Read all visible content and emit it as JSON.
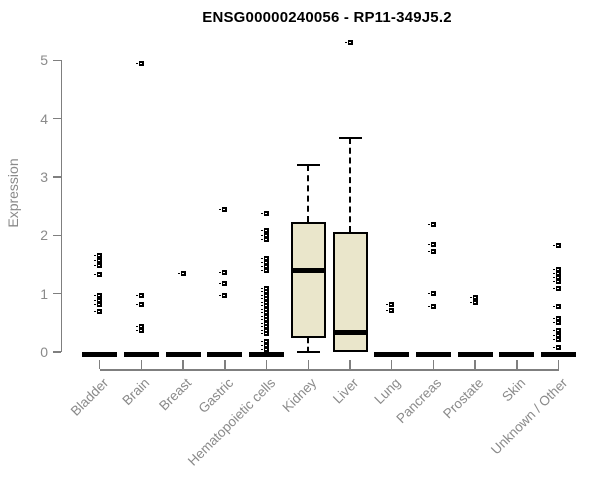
{
  "title": "ENSG00000240056 - RP11-349J5.2",
  "y_axis": {
    "label": "Expression",
    "ticks": [
      0,
      1,
      2,
      3,
      4,
      5
    ]
  },
  "colors": {
    "box_fill": "#EAE6CB",
    "box_stroke": "#000000",
    "axis": "#7f7f7f",
    "axis_text": "#8a8a8a",
    "title_text": "#000000"
  },
  "chart_data": {
    "type": "boxplot",
    "title": "ENSG00000240056 - RP11-349J5.2",
    "xlabel": "",
    "ylabel": "Expression",
    "ylim": [
      0,
      5
    ],
    "grid": false,
    "legend": false,
    "categories": [
      "Bladder",
      "Brain",
      "Breast",
      "Gastric",
      "Hematopoietic cells",
      "Kidney",
      "Liver",
      "Lung",
      "Pancreas",
      "Prostate",
      "Skin",
      "Unknown / Other"
    ],
    "boxes": [
      {
        "min": 0,
        "q1": 0,
        "med": 0,
        "q3": 0,
        "max": 0
      },
      {
        "min": 0,
        "q1": 0,
        "med": 0,
        "q3": 0,
        "max": 0
      },
      {
        "min": 0,
        "q1": 0,
        "med": 0,
        "q3": 0,
        "max": 0
      },
      {
        "min": 0,
        "q1": 0,
        "med": 0,
        "q3": 0,
        "max": 0
      },
      {
        "min": 0,
        "q1": 0,
        "med": 0,
        "q3": 0,
        "max": 0
      },
      {
        "min": 0,
        "q1": 0.24,
        "med": 1.4,
        "q3": 2.22,
        "max": 3.2
      },
      {
        "min": 0,
        "q1": 0,
        "med": 0.33,
        "q3": 2.05,
        "max": 3.67
      },
      {
        "min": 0,
        "q1": 0,
        "med": 0,
        "q3": 0,
        "max": 0
      },
      {
        "min": 0,
        "q1": 0,
        "med": 0,
        "q3": 0,
        "max": 0
      },
      {
        "min": 0,
        "q1": 0,
        "med": 0,
        "q3": 0,
        "max": 0
      },
      {
        "min": 0,
        "q1": 0,
        "med": 0,
        "q3": 0,
        "max": 0
      },
      {
        "min": 0,
        "q1": 0,
        "med": 0,
        "q3": 0,
        "max": 0
      }
    ],
    "outliers": [
      [
        1.65,
        1.57,
        1.49,
        1.32,
        0.97,
        0.89,
        0.82,
        0.69
      ],
      [
        4.95,
        0.96,
        0.81,
        0.43,
        0.36
      ],
      [
        1.34
      ],
      [
        2.44,
        1.36,
        1.17,
        0.96
      ],
      [
        2.38,
        2.08,
        2.0,
        1.93,
        1.61,
        1.53,
        1.46,
        1.39,
        1.09,
        1.03,
        0.97,
        0.91,
        0.85,
        0.79,
        0.73,
        0.67,
        0.61,
        0.55,
        0.49,
        0.43,
        0.37,
        0.31,
        0.18,
        0.11,
        0.04
      ],
      [],
      [
        5.3
      ],
      [
        0.82,
        0.71
      ],
      [
        2.18,
        1.85,
        1.72,
        1.01,
        0.78
      ],
      [
        0.93,
        0.84
      ],
      [],
      [
        1.82,
        1.42,
        1.35,
        1.27,
        1.21,
        1.09,
        0.78,
        0.58,
        0.5,
        0.36,
        0.29,
        0.22,
        0.07
      ]
    ]
  }
}
